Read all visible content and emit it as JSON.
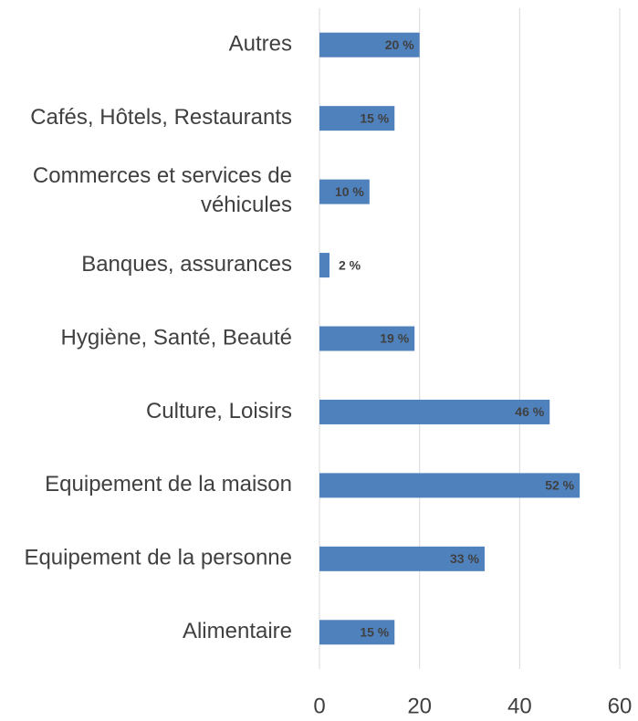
{
  "chart_data": {
    "type": "barh",
    "categories": [
      "Autres",
      "Cafés, Hôtels, Restaurants",
      "Commerces et services de véhicules",
      "Banques, assurances",
      "Hygiène, Santé, Beauté",
      "Culture, Loisirs",
      "Equipement de la maison",
      "Equipement de la personne",
      "Alimentaire"
    ],
    "values": [
      20,
      15,
      10,
      2,
      19,
      46,
      52,
      33,
      15
    ],
    "value_labels": [
      "20 %",
      "15 %",
      "10 %",
      "2 %",
      "19 %",
      "46 %",
      "52 %",
      "33 %",
      "15 %"
    ],
    "color": "#4f81bd",
    "xlim": [
      0,
      60
    ],
    "xticks": [
      0,
      20,
      40,
      60
    ],
    "grid": true
  }
}
